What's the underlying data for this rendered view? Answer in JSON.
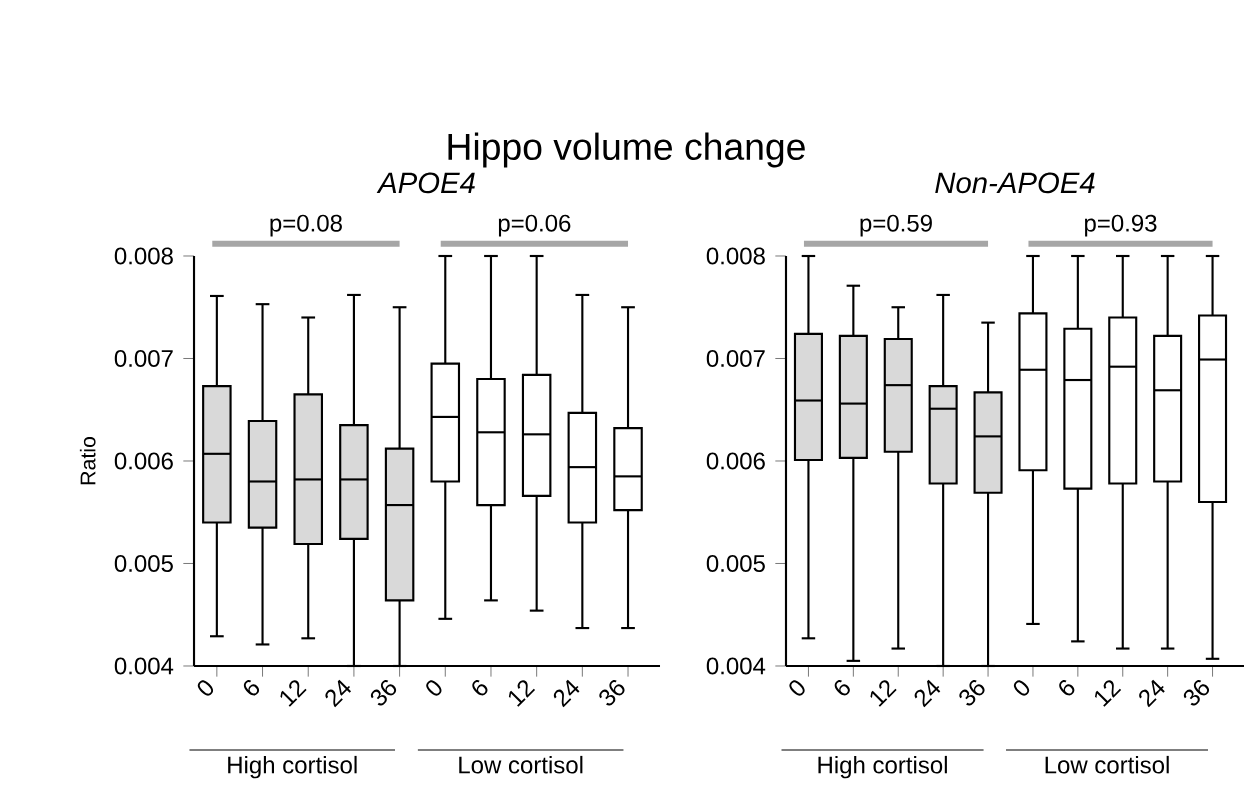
{
  "chart_data": [
    {
      "type": "box",
      "title": "Hippo volume change",
      "subtitle": "*APOE4*",
      "ylabel": "Ratio",
      "categories": [
        "0",
        "6",
        "12",
        "24",
        "36",
        "0",
        "6",
        "12",
        "24",
        "36"
      ],
      "ylim": [
        0.004,
        0.008
      ],
      "yticks": [
        0.004,
        0.005,
        0.006,
        0.007,
        0.008
      ],
      "colors": [
        "#d9d9d9",
        "#d9d9d9",
        "#d9d9d9",
        "#d9d9d9",
        "#d9d9d9",
        "#ffffff",
        "#ffffff",
        "#ffffff",
        "#ffffff",
        "#ffffff"
      ],
      "boxes": [
        {
          "low": 0.00429,
          "q1": 0.0054,
          "median": 0.00607,
          "q3": 0.00673,
          "high": 0.00761
        },
        {
          "low": 0.00421,
          "q1": 0.00535,
          "median": 0.0058,
          "q3": 0.00639,
          "high": 0.00753
        },
        {
          "low": 0.00427,
          "q1": 0.00519,
          "median": 0.00582,
          "q3": 0.00665,
          "high": 0.0074
        },
        {
          "low": 0.004,
          "q1": 0.00524,
          "median": 0.00582,
          "q3": 0.00635,
          "high": 0.00762
        },
        {
          "low": 0.004,
          "q1": 0.00464,
          "median": 0.00557,
          "q3": 0.00612,
          "high": 0.0075
        },
        {
          "low": 0.00446,
          "q1": 0.0058,
          "median": 0.00643,
          "q3": 0.00695,
          "high": 0.008
        },
        {
          "low": 0.00464,
          "q1": 0.00557,
          "median": 0.00628,
          "q3": 0.0068,
          "high": 0.008
        },
        {
          "low": 0.00454,
          "q1": 0.00566,
          "median": 0.00626,
          "q3": 0.00684,
          "high": 0.008
        },
        {
          "low": 0.00437,
          "q1": 0.0054,
          "median": 0.00594,
          "q3": 0.00647,
          "high": 0.00762
        },
        {
          "low": 0.00437,
          "q1": 0.00552,
          "median": 0.00585,
          "q3": 0.00632,
          "high": 0.0075
        }
      ],
      "annotations": [
        "p=0.08",
        "p=0.06",
        "High cortisol",
        "Low cortisol"
      ]
    },
    {
      "type": "box",
      "subtitle": "Non-*APOE4*",
      "categories": [
        "0",
        "6",
        "12",
        "24",
        "36",
        "0",
        "6",
        "12",
        "24",
        "36"
      ],
      "ylim": [
        0.004,
        0.008
      ],
      "yticks": [
        0.004,
        0.005,
        0.006,
        0.007,
        0.008
      ],
      "colors": [
        "#d9d9d9",
        "#d9d9d9",
        "#d9d9d9",
        "#d9d9d9",
        "#d9d9d9",
        "#ffffff",
        "#ffffff",
        "#ffffff",
        "#ffffff",
        "#ffffff"
      ],
      "boxes": [
        {
          "low": 0.00427,
          "q1": 0.00601,
          "median": 0.00659,
          "q3": 0.00724,
          "high": 0.008
        },
        {
          "low": 0.00405,
          "q1": 0.00603,
          "median": 0.00656,
          "q3": 0.00722,
          "high": 0.00771
        },
        {
          "low": 0.00417,
          "q1": 0.00609,
          "median": 0.00674,
          "q3": 0.00719,
          "high": 0.0075
        },
        {
          "low": 0.004,
          "q1": 0.00578,
          "median": 0.00651,
          "q3": 0.00673,
          "high": 0.00762
        },
        {
          "low": 0.004,
          "q1": 0.00569,
          "median": 0.00624,
          "q3": 0.00667,
          "high": 0.00735
        },
        {
          "low": 0.00441,
          "q1": 0.00591,
          "median": 0.00689,
          "q3": 0.00744,
          "high": 0.008
        },
        {
          "low": 0.00424,
          "q1": 0.00573,
          "median": 0.00679,
          "q3": 0.00729,
          "high": 0.008
        },
        {
          "low": 0.00417,
          "q1": 0.00578,
          "median": 0.00692,
          "q3": 0.0074,
          "high": 0.008
        },
        {
          "low": 0.00417,
          "q1": 0.0058,
          "median": 0.00669,
          "q3": 0.00722,
          "high": 0.008
        },
        {
          "low": 0.00407,
          "q1": 0.0056,
          "median": 0.00699,
          "q3": 0.00742,
          "high": 0.008
        }
      ],
      "annotations": [
        "p=0.59",
        "p=0.93",
        "High cortisol",
        "Low cortisol"
      ]
    }
  ]
}
